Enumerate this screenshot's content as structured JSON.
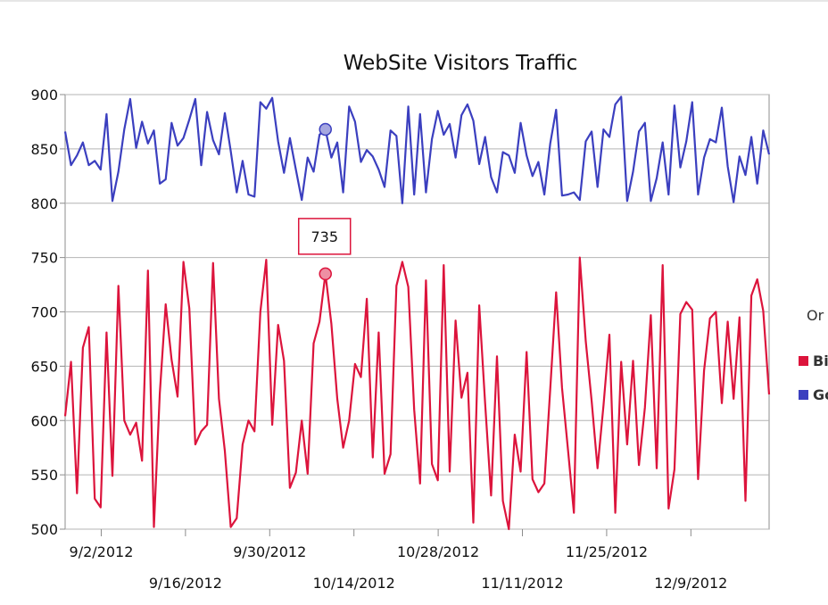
{
  "chart_data": {
    "type": "line",
    "title": "WebSite Visitors Traffic",
    "x_type": "date",
    "x_start": "2012-08-27",
    "x_end": "2012-12-22",
    "ylim": [
      500,
      900
    ],
    "yticks": [
      500,
      550,
      600,
      650,
      700,
      750,
      800,
      850,
      900
    ],
    "grid": true,
    "legend_title": "Or",
    "legend_placement": "right",
    "xticks": {
      "upper": [
        {
          "date": "2012-09-02",
          "label": "9/2/2012"
        },
        {
          "date": "2012-09-30",
          "label": "9/30/2012"
        },
        {
          "date": "2012-10-28",
          "label": "10/28/2012"
        },
        {
          "date": "2012-11-25",
          "label": "11/25/2012"
        }
      ],
      "lower": [
        {
          "date": "2012-09-16",
          "label": "9/16/2012"
        },
        {
          "date": "2012-10-14",
          "label": "10/14/2012"
        },
        {
          "date": "2012-11-11",
          "label": "11/11/2012"
        },
        {
          "date": "2012-12-09",
          "label": "12/9/2012"
        }
      ]
    },
    "series": [
      {
        "name": "Bi",
        "color": "#dc143c",
        "values": [
          604,
          654,
          533,
          667,
          686,
          528,
          520,
          681,
          549,
          724,
          600,
          587,
          598,
          563,
          738,
          502,
          625,
          707,
          656,
          622,
          746,
          703,
          578,
          590,
          596,
          745,
          620,
          572,
          502,
          510,
          578,
          600,
          590,
          700,
          748,
          596,
          688,
          655,
          538,
          552,
          600,
          551,
          671,
          691,
          735,
          689,
          620,
          575,
          600,
          652,
          640,
          712,
          566,
          681,
          551,
          569,
          724,
          746,
          723,
          610,
          542,
          729,
          560,
          545,
          743,
          553,
          692,
          621,
          644,
          506,
          706,
          616,
          531,
          659,
          526,
          500,
          587,
          553,
          663,
          546,
          534,
          542,
          629,
          718,
          630,
          573,
          515,
          750,
          673,
          618,
          556,
          614,
          679,
          515,
          654,
          578,
          655,
          559,
          612,
          697,
          556,
          743,
          519,
          555,
          698,
          709,
          702,
          546,
          646,
          694,
          700,
          616,
          691,
          620,
          695,
          526,
          715,
          730,
          701,
          624
        ],
        "tooltip": {
          "index": 44,
          "label": "735"
        }
      },
      {
        "name": "Go",
        "color": "#3b3fbf",
        "values": [
          866,
          835,
          844,
          856,
          835,
          839,
          831,
          882,
          802,
          829,
          868,
          896,
          851,
          875,
          855,
          867,
          818,
          822,
          874,
          853,
          860,
          877,
          896,
          835,
          884,
          858,
          845,
          883,
          848,
          810,
          839,
          808,
          806,
          893,
          887,
          897,
          857,
          828,
          860,
          831,
          803,
          842,
          829,
          863,
          868,
          842,
          856,
          810,
          889,
          875,
          838,
          849,
          843,
          831,
          815,
          867,
          862,
          800,
          889,
          808,
          882,
          810,
          859,
          885,
          863,
          873,
          842,
          881,
          891,
          876,
          836,
          861,
          824,
          810,
          847,
          844,
          828,
          874,
          844,
          825,
          838,
          808,
          855,
          886,
          807,
          808,
          810,
          803,
          857,
          866,
          815,
          868,
          861,
          891,
          898,
          802,
          829,
          866,
          874,
          802,
          823,
          856,
          808,
          890,
          833,
          857,
          893,
          808,
          842,
          859,
          856,
          888,
          834,
          801,
          843,
          826,
          861,
          818,
          867,
          845
        ],
        "tooltip": {
          "index": 44,
          "label": ""
        }
      }
    ]
  }
}
